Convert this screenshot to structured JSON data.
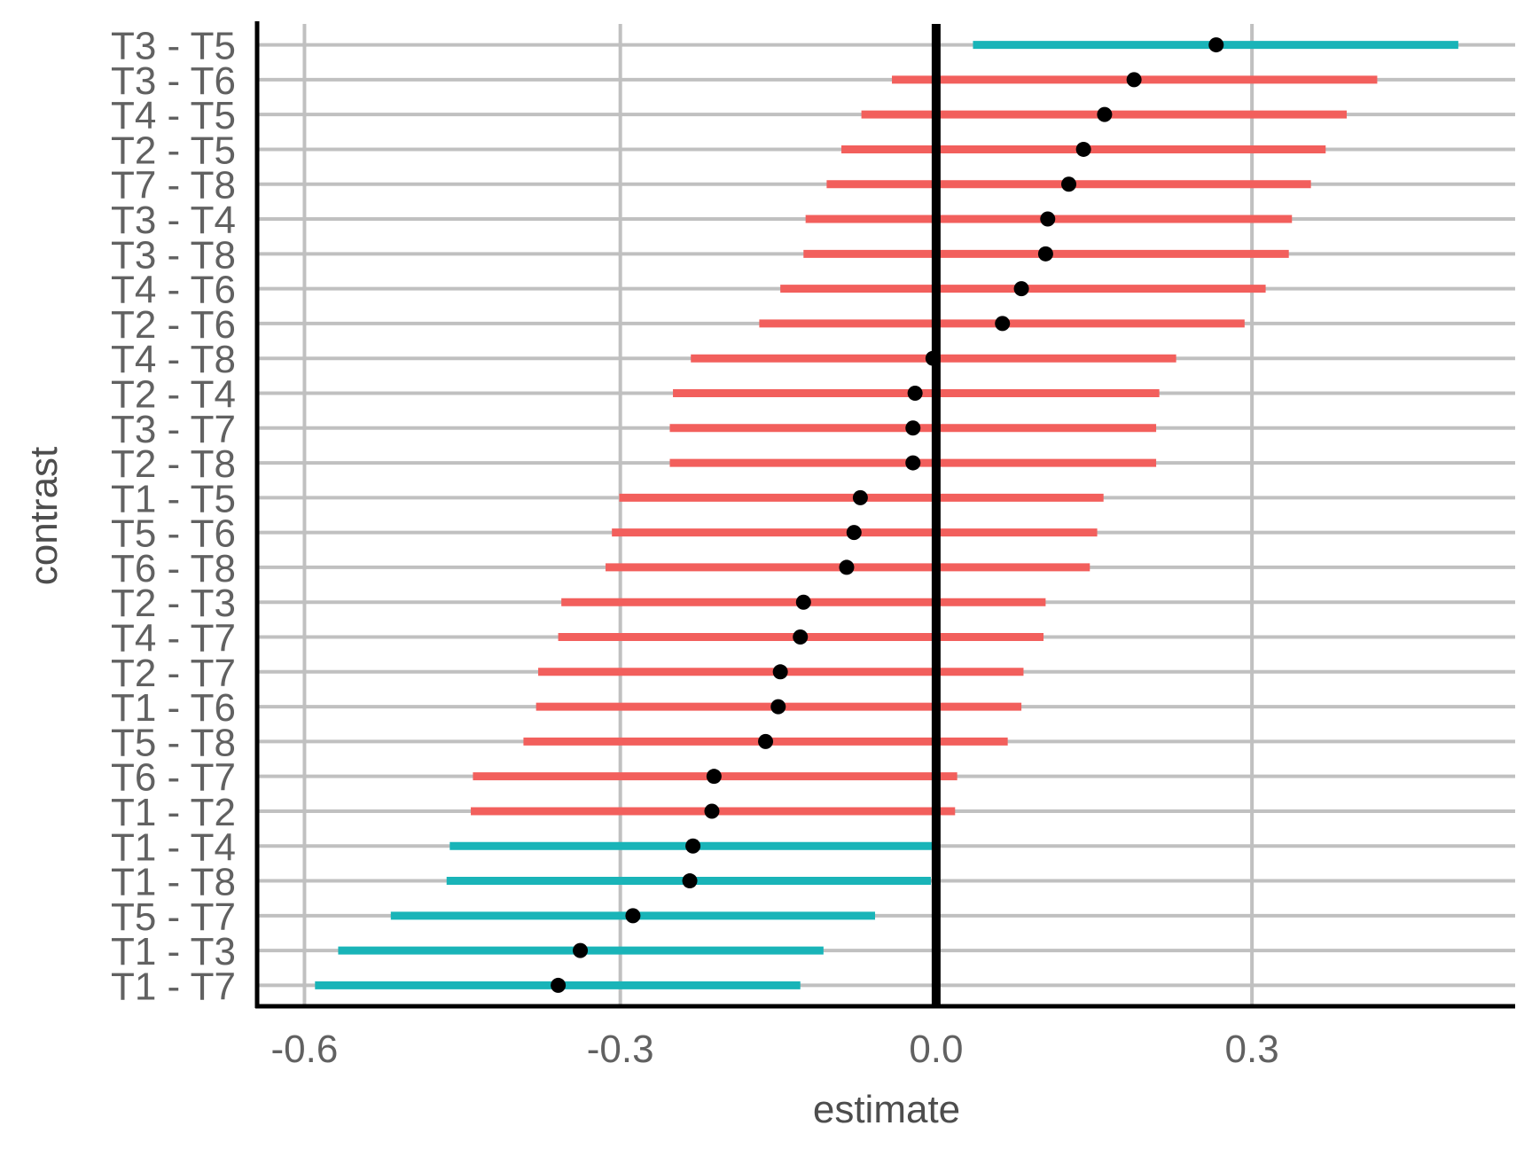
{
  "chart_data": {
    "type": "errorbar-dot",
    "title": "",
    "xlabel": "estimate",
    "ylabel": "contrast",
    "xlim": [
      -0.645,
      0.55
    ],
    "xticks": [
      -0.6,
      -0.3,
      0.0,
      0.3
    ],
    "xtick_labels": [
      "-0.6",
      "-0.3",
      "0.0",
      "0.3"
    ],
    "reference_line": 0.0,
    "grid": true,
    "colors": {
      "significant": "#19B4B8",
      "not_significant": "#F25F5C",
      "point": "#000000",
      "grid": "#C0C0C0"
    },
    "rows": [
      {
        "contrast": "T3 - T5",
        "estimate": 0.266,
        "lower": 0.035,
        "upper": 0.496,
        "significant": true
      },
      {
        "contrast": "T3 - T6",
        "estimate": 0.188,
        "lower": -0.042,
        "upper": 0.419,
        "significant": false
      },
      {
        "contrast": "T4 - T5",
        "estimate": 0.16,
        "lower": -0.071,
        "upper": 0.39,
        "significant": false
      },
      {
        "contrast": "T2 - T5",
        "estimate": 0.14,
        "lower": -0.09,
        "upper": 0.37,
        "significant": false
      },
      {
        "contrast": "T7 - T8",
        "estimate": 0.126,
        "lower": -0.104,
        "upper": 0.356,
        "significant": false
      },
      {
        "contrast": "T3 - T4",
        "estimate": 0.106,
        "lower": -0.124,
        "upper": 0.338,
        "significant": false
      },
      {
        "contrast": "T3 - T8",
        "estimate": 0.104,
        "lower": -0.126,
        "upper": 0.335,
        "significant": false
      },
      {
        "contrast": "T4 - T6",
        "estimate": 0.081,
        "lower": -0.148,
        "upper": 0.313,
        "significant": false
      },
      {
        "contrast": "T2 - T6",
        "estimate": 0.063,
        "lower": -0.168,
        "upper": 0.293,
        "significant": false
      },
      {
        "contrast": "T4 - T8",
        "estimate": -0.003,
        "lower": -0.233,
        "upper": 0.228,
        "significant": false
      },
      {
        "contrast": "T2 - T4",
        "estimate": -0.02,
        "lower": -0.25,
        "upper": 0.212,
        "significant": false
      },
      {
        "contrast": "T3 - T7",
        "estimate": -0.022,
        "lower": -0.253,
        "upper": 0.209,
        "significant": false
      },
      {
        "contrast": "T2 - T8",
        "estimate": -0.022,
        "lower": -0.253,
        "upper": 0.209,
        "significant": false
      },
      {
        "contrast": "T1 - T5",
        "estimate": -0.072,
        "lower": -0.301,
        "upper": 0.159,
        "significant": false
      },
      {
        "contrast": "T5 - T6",
        "estimate": -0.078,
        "lower": -0.308,
        "upper": 0.153,
        "significant": false
      },
      {
        "contrast": "T6 - T8",
        "estimate": -0.085,
        "lower": -0.314,
        "upper": 0.146,
        "significant": false
      },
      {
        "contrast": "T2 - T3",
        "estimate": -0.126,
        "lower": -0.356,
        "upper": 0.104,
        "significant": false
      },
      {
        "contrast": "T4 - T7",
        "estimate": -0.129,
        "lower": -0.359,
        "upper": 0.102,
        "significant": false
      },
      {
        "contrast": "T2 - T7",
        "estimate": -0.148,
        "lower": -0.378,
        "upper": 0.083,
        "significant": false
      },
      {
        "contrast": "T1 - T6",
        "estimate": -0.15,
        "lower": -0.38,
        "upper": 0.081,
        "significant": false
      },
      {
        "contrast": "T5 - T8",
        "estimate": -0.162,
        "lower": -0.392,
        "upper": 0.068,
        "significant": false
      },
      {
        "contrast": "T6 - T7",
        "estimate": -0.211,
        "lower": -0.44,
        "upper": 0.02,
        "significant": false
      },
      {
        "contrast": "T1 - T2",
        "estimate": -0.213,
        "lower": -0.442,
        "upper": 0.018,
        "significant": false
      },
      {
        "contrast": "T1 - T4",
        "estimate": -0.231,
        "lower": -0.462,
        "upper": -0.003,
        "significant": true
      },
      {
        "contrast": "T1 - T8",
        "estimate": -0.234,
        "lower": -0.465,
        "upper": -0.005,
        "significant": true
      },
      {
        "contrast": "T5 - T7",
        "estimate": -0.288,
        "lower": -0.518,
        "upper": -0.058,
        "significant": true
      },
      {
        "contrast": "T1 - T3",
        "estimate": -0.338,
        "lower": -0.568,
        "upper": -0.107,
        "significant": true
      },
      {
        "contrast": "T1 - T7",
        "estimate": -0.359,
        "lower": -0.59,
        "upper": -0.129,
        "significant": true
      }
    ]
  }
}
